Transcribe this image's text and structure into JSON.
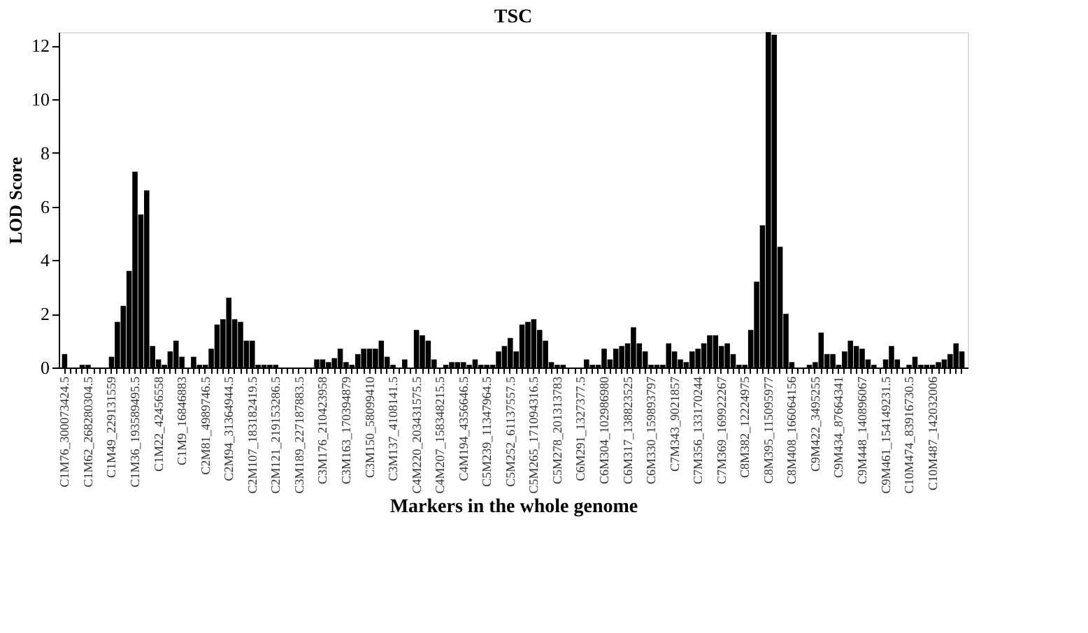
{
  "chart_data": {
    "type": "bar",
    "title": "TSC",
    "xlabel": "Markers in the whole genome",
    "ylabel": "LOD Score",
    "color": "#000000",
    "ylim": [
      0,
      12.5
    ],
    "yticks": [
      0,
      2,
      4,
      6,
      8,
      10,
      12
    ],
    "grid": false,
    "categories": [
      "C1M76_300073424.5",
      null,
      null,
      null,
      "C1M62_268280304.5",
      null,
      null,
      null,
      "C1M49_229131559",
      null,
      null,
      null,
      "C1M36_193589495.5",
      null,
      null,
      null,
      "C1M22_42456558",
      null,
      null,
      null,
      "C1M9_16846883",
      null,
      null,
      null,
      "C2M81_4989746.5",
      null,
      null,
      null,
      "C2M94_31364944.5",
      null,
      null,
      null,
      "C2M107_183182419.5",
      null,
      null,
      null,
      "C2M121_219153286.5",
      null,
      null,
      null,
      "C3M189_227187883.5",
      null,
      null,
      null,
      "C3M176_210423958",
      null,
      null,
      null,
      "C3M163_170394879",
      null,
      null,
      null,
      "C3M150_58099410",
      null,
      null,
      null,
      "C3M137_4108141.5",
      null,
      null,
      null,
      "C4M220_203431575.5",
      null,
      null,
      null,
      "C4M207_158348215.5",
      null,
      null,
      null,
      "C4M194_4356646.5",
      null,
      null,
      null,
      "C5M239_11347964.5",
      null,
      null,
      null,
      "C5M252_61137557.5",
      null,
      null,
      null,
      "C5M265_171094316.5",
      null,
      null,
      null,
      "C5M278_201313783",
      null,
      null,
      null,
      "C6M291_1327377.5",
      null,
      null,
      null,
      "C6M304_102986980",
      null,
      null,
      null,
      "C6M317_138823525",
      null,
      null,
      null,
      "C6M330_159893797",
      null,
      null,
      null,
      "C7M343_9021857",
      null,
      null,
      null,
      "C7M356_133170244",
      null,
      null,
      null,
      "C7M369_169922267",
      null,
      null,
      null,
      "C8M382_12224975",
      null,
      null,
      null,
      "C8M395_115095977",
      null,
      null,
      null,
      "C8M408_166064156",
      null,
      null,
      null,
      "C9M422_3495255",
      null,
      null,
      null,
      "C9M434_87664341",
      null,
      null,
      null,
      "C9M448_140896067",
      null,
      null,
      null,
      "C9M461_154149231.5",
      null,
      null,
      null,
      "C10M474_83916730.5",
      null,
      null,
      null,
      "C10M487_142032006",
      null,
      null,
      null,
      null,
      null
    ],
    "values": [
      0.5,
      0,
      0,
      0.1,
      0.1,
      0,
      0,
      0,
      0.4,
      1.7,
      2.3,
      3.6,
      7.3,
      5.7,
      6.6,
      0.8,
      0.3,
      0.1,
      0.6,
      1.0,
      0.4,
      0,
      0.4,
      0.1,
      0.1,
      0.7,
      1.6,
      1.8,
      2.6,
      1.8,
      1.7,
      1.0,
      1.0,
      0.1,
      0.1,
      0.1,
      0.1,
      0,
      0,
      0,
      0,
      0,
      0,
      0.3,
      0.3,
      0.2,
      0.35,
      0.7,
      0.2,
      0.1,
      0.5,
      0.7,
      0.7,
      0.7,
      1.0,
      0.4,
      0.1,
      0,
      0.3,
      0,
      1.4,
      1.2,
      1.0,
      0.3,
      0,
      0.1,
      0.2,
      0.2,
      0.2,
      0.1,
      0.3,
      0.1,
      0.1,
      0.1,
      0.6,
      0.8,
      1.1,
      0.6,
      1.6,
      1.7,
      1.8,
      1.4,
      1.0,
      0.2,
      0.1,
      0.1,
      0,
      0,
      0,
      0.3,
      0.1,
      0.1,
      0.7,
      0.3,
      0.7,
      0.8,
      0.9,
      1.5,
      0.9,
      0.6,
      0.1,
      0.1,
      0.1,
      0.9,
      0.6,
      0.3,
      0.2,
      0.6,
      0.7,
      0.9,
      1.2,
      1.2,
      0.8,
      0.9,
      0.5,
      0.1,
      0.1,
      1.4,
      3.2,
      5.3,
      12.5,
      12.4,
      4.5,
      2.0,
      0.2,
      0,
      0,
      0.1,
      0.2,
      1.3,
      0.5,
      0.5,
      0.1,
      0.6,
      1.0,
      0.8,
      0.7,
      0.3,
      0.1,
      0,
      0.3,
      0.8,
      0.3,
      0,
      0.1,
      0.4,
      0.1,
      0.1,
      0.1,
      0.2,
      0.3,
      0.5,
      0.9,
      0.6
    ]
  }
}
